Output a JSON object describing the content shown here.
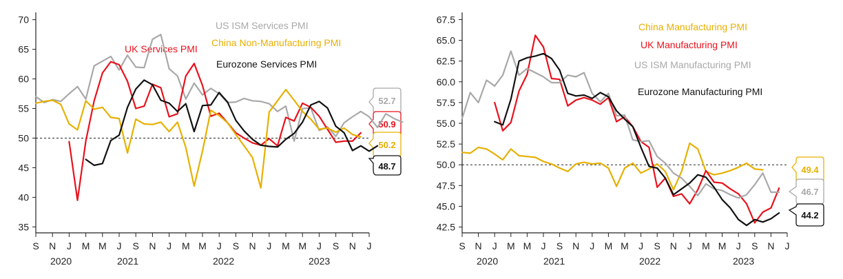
{
  "chart_data": [
    {
      "type": "line",
      "title": "Services PMI",
      "ylim": [
        34,
        71
      ],
      "yticks": [
        35,
        40,
        45,
        50,
        55,
        60,
        65,
        70
      ],
      "reference_line": 50,
      "month_ticks": [
        "S",
        "N",
        "J",
        "M",
        "M",
        "J",
        "S",
        "N",
        "J",
        "M",
        "M",
        "J",
        "S",
        "N",
        "J",
        "M",
        "M",
        "J",
        "S",
        "N",
        "J"
      ],
      "year_labels": [
        "2020",
        "2021",
        "2022",
        "2023"
      ],
      "series": [
        {
          "name": "US ISM Services PMI",
          "color": "#a8a8a8",
          "start": 0,
          "values": [
            57,
            56,
            56.5,
            56.2,
            57.5,
            58.7,
            56.6,
            62.2,
            63,
            63.8,
            61.5,
            64,
            62,
            61.9,
            66.7,
            67.5,
            61.7,
            60.5,
            56.6,
            59.3,
            57.3,
            58.4,
            57.5,
            56,
            56.1,
            56.7,
            56.3,
            56.2,
            55.8,
            54.5,
            55.4,
            49.5,
            55,
            55.1,
            51.3,
            51.9,
            50.3,
            52.6,
            53.6,
            54.5,
            53.6,
            51.8,
            54.1,
            53.3,
            52.7
          ]
        },
        {
          "name": "UK Services PMI",
          "color": "#e8111c",
          "start": 4,
          "values": [
            49.4,
            39.5,
            49.5,
            56.3,
            61,
            62.9,
            62.4,
            59.6,
            55,
            55.4,
            59.1,
            58.5,
            53.6,
            54.1,
            60.5,
            62.6,
            58.9,
            53.7,
            54.2,
            52.6,
            50.9,
            50.0,
            49.2,
            48.8,
            49.9,
            48.7,
            53.5,
            52.9,
            55.9,
            55.2,
            53.7,
            51.5,
            49.3,
            49.5,
            49.5,
            50.9
          ]
        },
        {
          "name": "China Non-Manufacturing PMI",
          "color": "#e6b000",
          "start": 0,
          "values": [
            55.9,
            56.2,
            56.4,
            55.7,
            52.4,
            51.4,
            56.3,
            54.9,
            55.2,
            53.5,
            53.3,
            47.5,
            53.2,
            52.4,
            52.3,
            52.7,
            51.1,
            52.7,
            48.4,
            41.9,
            47.8,
            54.7,
            53.8,
            52.6,
            50.6,
            48.7,
            46.7,
            41.6,
            54.4,
            56.3,
            58.2,
            56.4,
            54.5,
            53.2,
            51.5,
            51.7,
            51,
            51.7,
            50.6,
            50.2
          ]
        },
        {
          "name": "Eurozone Services PMI",
          "color": "#111111",
          "start": 6,
          "values": [
            46.4,
            45.4,
            45.7,
            49.6,
            50.5,
            55.2,
            58.3,
            59.8,
            59,
            56.4,
            55.9,
            54.5,
            55.8,
            51.1,
            55.5,
            55.6,
            57.7,
            56.1,
            53,
            51.2,
            49.8,
            48.8,
            48.6,
            48.5,
            49.8,
            50.8,
            52.7,
            55.6,
            56.2,
            55.1,
            52,
            50.9,
            47.9,
            48.7,
            47.8,
            48.7
          ]
        }
      ],
      "callouts": [
        {
          "label": "52.7",
          "color": "#a8a8a8"
        },
        {
          "label": "50.9",
          "color": "#e8111c"
        },
        {
          "label": "50.2",
          "color": "#e6b000"
        },
        {
          "label": "48.7",
          "color": "#111111"
        }
      ]
    },
    {
      "type": "line",
      "title": "Manufacturing PMI",
      "ylim": [
        41.8,
        68.2
      ],
      "yticks": [
        42.5,
        45.0,
        47.5,
        50.0,
        52.5,
        55.0,
        57.5,
        60.0,
        62.5,
        65.0,
        67.5
      ],
      "reference_line": 50,
      "month_ticks": [
        "S",
        "N",
        "J",
        "M",
        "M",
        "J",
        "S",
        "N",
        "J",
        "M",
        "M",
        "J",
        "S",
        "N",
        "J",
        "M",
        "M",
        "J",
        "S",
        "N",
        "J"
      ],
      "year_labels": [
        "2020",
        "2021",
        "2022",
        "2023"
      ],
      "series": [
        {
          "name": "China Manufacturing PMI",
          "color": "#e6b000",
          "start": 0,
          "values": [
            51.5,
            51.4,
            52.1,
            51.9,
            51.3,
            50.6,
            51.9,
            51.1,
            51,
            50.9,
            50.4,
            50.1,
            49.6,
            49.2,
            50.1,
            50.3,
            50.1,
            50.2,
            49.6,
            47.4,
            49.6,
            50.2,
            49.0,
            49.5,
            50.1,
            49.2,
            47.0,
            49.2,
            52.6,
            51.9,
            49.2,
            48.8,
            49,
            49.3,
            49.7,
            50.2,
            49.5,
            49.4
          ]
        },
        {
          "name": "UK Manufacturing PMI",
          "color": "#e8111c",
          "start": 4,
          "values": [
            57.5,
            54.1,
            55.1,
            58.9,
            60.9,
            65.6,
            64.2,
            60.4,
            60.3,
            57.1,
            57.8,
            58.1,
            57.8,
            57.3,
            58.1,
            55.2,
            55.8,
            54.6,
            52.8,
            52.1,
            47.3,
            48.4,
            46.2,
            46.5,
            45.3,
            47.0,
            49.3,
            47.9,
            47.8,
            47.1,
            46.5,
            45.3,
            43.0,
            44.3,
            44.8,
            47.2
          ]
        },
        {
          "name": "US ISM Manufacturing PMI",
          "color": "#a8a8a8",
          "start": 0,
          "values": [
            55.6,
            58.7,
            57.5,
            60.2,
            59.5,
            60.8,
            63.7,
            60.8,
            61.6,
            61.1,
            60.6,
            59.9,
            59.9,
            60.8,
            60.6,
            61.1,
            58.6,
            57.6,
            58.6,
            55.9,
            56,
            53,
            52.8,
            52.9,
            51,
            50.2,
            49,
            48.4,
            47.4,
            46.3,
            47.7,
            47.1,
            46.9,
            46.4,
            46.0,
            46.4,
            47.6,
            49.0,
            46.7,
            46.7
          ]
        },
        {
          "name": "Eurozone Manufacturing PMI",
          "color": "#111111",
          "start": 4,
          "values": [
            55.2,
            54.8,
            57.9,
            62.5,
            62.9,
            63.1,
            63.4,
            62.8,
            61.4,
            58.6,
            58.3,
            58.4,
            58.0,
            58.7,
            58.2,
            56.5,
            55.5,
            54.6,
            52.1,
            49.8,
            49.6,
            48.4,
            46.4,
            47.1,
            47.8,
            48.8,
            48.5,
            47.3,
            45.8,
            44.8,
            43.4,
            42.7,
            43.4,
            43.1,
            43.5,
            44.2
          ]
        }
      ],
      "callouts": [
        {
          "label": "49.4",
          "color": "#e6b000"
        },
        {
          "label": "46.7",
          "color": "#a8a8a8"
        },
        {
          "label": "44.2",
          "color": "#111111"
        }
      ]
    }
  ]
}
